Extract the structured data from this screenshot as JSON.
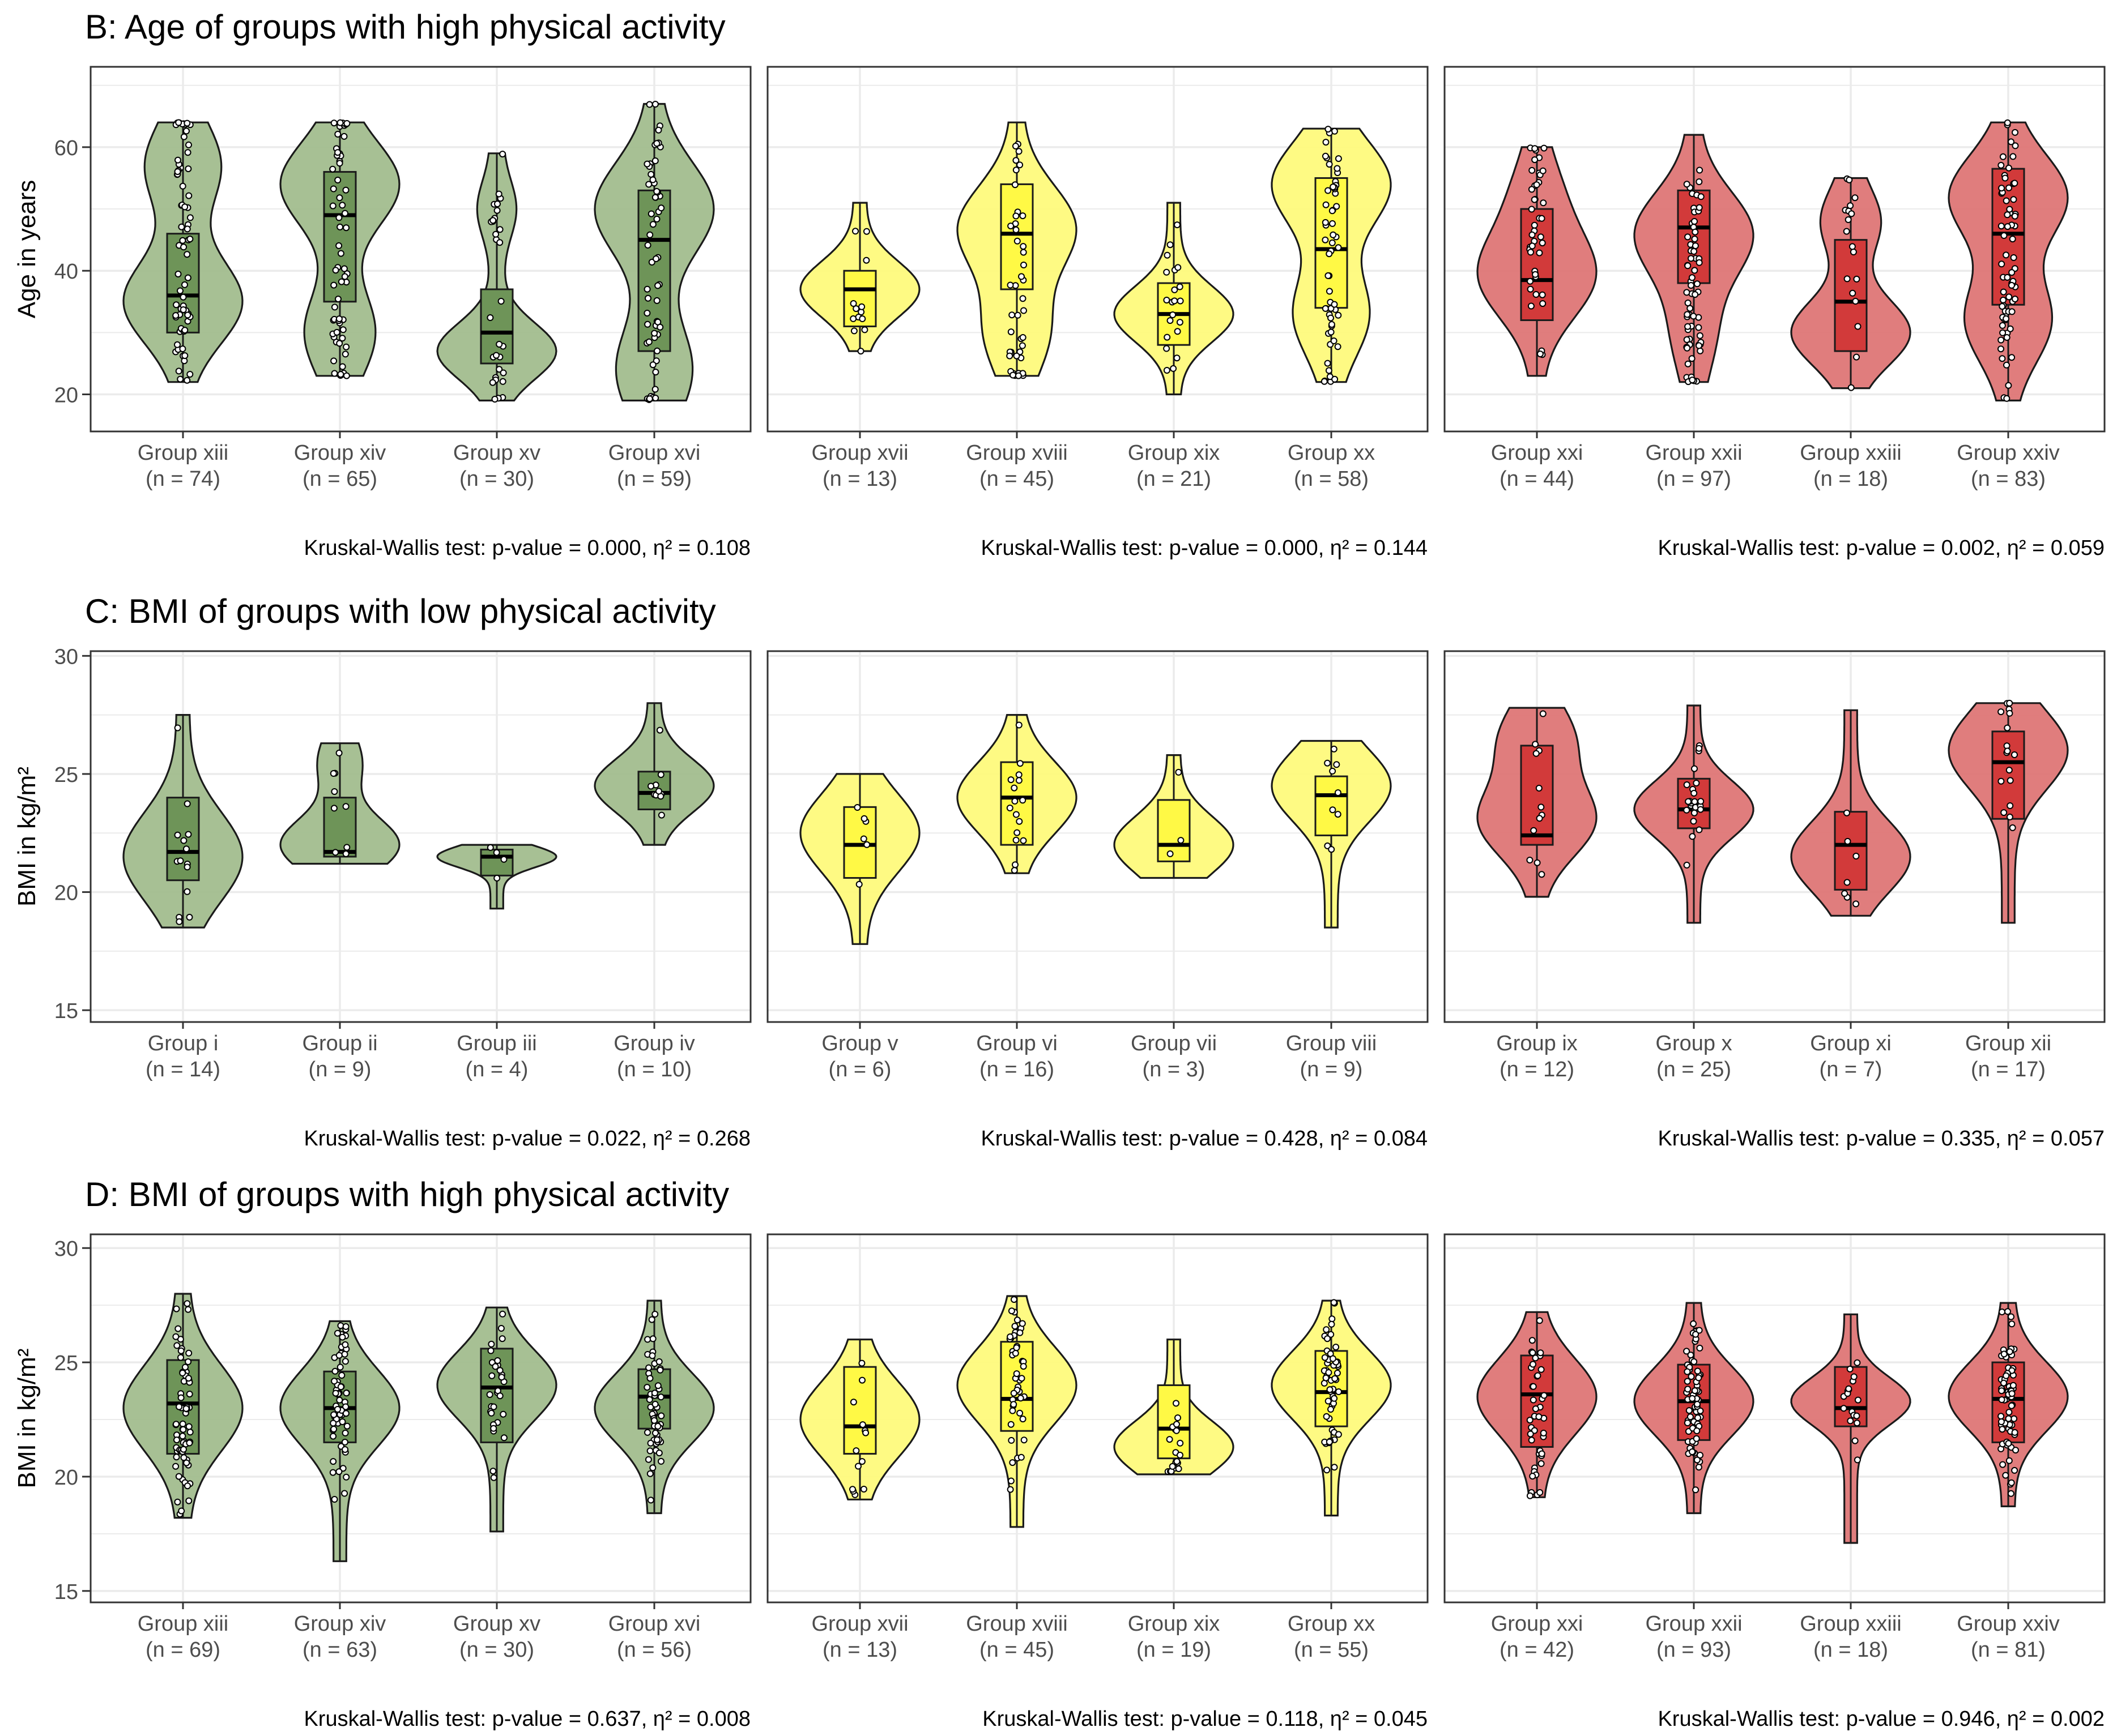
{
  "colors": {
    "green_violin": "#a2bd8e",
    "green_box": "#6e9458",
    "yellow_violin": "#fefa7c",
    "yellow_box": "#fff945",
    "red_violin": "#de7676",
    "red_box": "#d23a3a",
    "panel_border": "#333333",
    "grid": "#ebebeb",
    "outline": "#1a1a1a"
  },
  "chart_data": [
    {
      "type": "violin",
      "title": "B: Age of groups with high physical activity",
      "ylabel": "Age in years",
      "ylim": [
        14,
        73
      ],
      "yticks": [
        "20",
        "40",
        "60"
      ],
      "grid": true,
      "panels": [
        {
          "color": "green",
          "stat": "Kruskal-Wallis test: p-value = 0.000, η² = 0.108",
          "groups": [
            {
              "label": "Group xiii",
              "n": "(n = 74)",
              "min": 22,
              "max": 64,
              "q1": 30,
              "median": 36,
              "q3": 46,
              "modes": [
                [
                  35,
                  1.0
                ],
                [
                  57,
                  0.6
                ]
              ],
              "bw": 9
            },
            {
              "label": "Group xiv",
              "n": "(n = 65)",
              "min": 23,
              "max": 64,
              "q1": 35,
              "median": 49,
              "q3": 56,
              "modes": [
                [
                  54,
                  1.0
                ],
                [
                  30,
                  0.55
                ]
              ],
              "bw": 9
            },
            {
              "label": "Group xv",
              "n": "(n = 30)",
              "min": 19,
              "max": 59,
              "q1": 25,
              "median": 30,
              "q3": 37,
              "modes": [
                [
                  27,
                  1.0
                ],
                [
                  50,
                  0.25
                ]
              ],
              "bw": 6
            },
            {
              "label": "Group xvi",
              "n": "(n = 59)",
              "min": 19,
              "max": 67,
              "q1": 27,
              "median": 45,
              "q3": 53,
              "modes": [
                [
                  50,
                  1.0
                ],
                [
                  24,
                  0.6
                ]
              ],
              "bw": 10
            }
          ]
        },
        {
          "color": "yellow",
          "stat": "Kruskal-Wallis test: p-value = 0.000, η² = 0.144",
          "groups": [
            {
              "label": "Group xvii",
              "n": "(n = 13)",
              "min": 27,
              "max": 51,
              "q1": 31,
              "median": 37,
              "q3": 40,
              "modes": [
                [
                  37,
                  1.0
                ]
              ],
              "bw": 6
            },
            {
              "label": "Group xviii",
              "n": "(n = 45)",
              "min": 23,
              "max": 64,
              "q1": 37,
              "median": 46,
              "q3": 54,
              "modes": [
                [
                  47,
                  1.0
                ],
                [
                  30,
                  0.5
                ]
              ],
              "bw": 9
            },
            {
              "label": "Group xix",
              "n": "(n = 21)",
              "min": 20,
              "max": 51,
              "q1": 28,
              "median": 33,
              "q3": 38,
              "modes": [
                [
                  33,
                  1.0
                ]
              ],
              "bw": 6
            },
            {
              "label": "Group xx",
              "n": "(n = 58)",
              "min": 22,
              "max": 63,
              "q1": 34,
              "median": 43.5,
              "q3": 55,
              "modes": [
                [
                  54,
                  1.0
                ],
                [
                  33,
                  0.6
                ]
              ],
              "bw": 9
            }
          ]
        },
        {
          "color": "red",
          "stat": "Kruskal-Wallis test: p-value = 0.002, η² = 0.059",
          "groups": [
            {
              "label": "Group xxi",
              "n": "(n = 44)",
              "min": 23,
              "max": 60,
              "q1": 32,
              "median": 38.5,
              "q3": 50,
              "modes": [
                [
                  39,
                  1.0
                ],
                [
                  52,
                  0.35
                ]
              ],
              "bw": 9
            },
            {
              "label": "Group xxii",
              "n": "(n = 97)",
              "min": 22,
              "max": 62,
              "q1": 38,
              "median": 47,
              "q3": 53,
              "modes": [
                [
                  46,
                  1.0
                ],
                [
                  30,
                  0.3
                ]
              ],
              "bw": 9
            },
            {
              "label": "Group xxiii",
              "n": "(n = 18)",
              "min": 21,
              "max": 55,
              "q1": 27,
              "median": 35,
              "q3": 45,
              "modes": [
                [
                  30,
                  1.0
                ],
                [
                  48,
                  0.45
                ]
              ],
              "bw": 7
            },
            {
              "label": "Group xxiv",
              "n": "(n = 83)",
              "min": 19,
              "max": 64,
              "q1": 34.5,
              "median": 46,
              "q3": 56.5,
              "modes": [
                [
                  52,
                  1.0
                ],
                [
                  32,
                  0.7
                ]
              ],
              "bw": 9
            }
          ]
        }
      ]
    },
    {
      "type": "violin",
      "title": "C: BMI of groups with low physical activity",
      "ylabel": "BMI in kg/m²",
      "ylim": [
        14.5,
        30.2
      ],
      "yticks": [
        "15",
        "20",
        "25",
        "30"
      ],
      "grid": true,
      "panels": [
        {
          "color": "green",
          "stat": "Kruskal-Wallis test: p-value = 0.022, η² = 0.268",
          "groups": [
            {
              "label": "Group i",
              "n": "(n = 14)",
              "min": 18.5,
              "max": 27.5,
              "q1": 20.5,
              "median": 21.7,
              "q3": 24,
              "modes": [
                [
                  21.5,
                  1.0
                ]
              ],
              "bw": 2.5
            },
            {
              "label": "Group ii",
              "n": "(n = 9)",
              "min": 21.2,
              "max": 26.3,
              "q1": 21.5,
              "median": 21.7,
              "q3": 24,
              "modes": [
                [
                  22,
                  1.0
                ],
                [
                  25.5,
                  0.3
                ]
              ],
              "bw": 1.5
            },
            {
              "label": "Group iii",
              "n": "(n = 4)",
              "min": 19.3,
              "max": 22,
              "q1": 20.7,
              "median": 21.5,
              "q3": 21.8,
              "modes": [
                [
                  21.5,
                  1.0
                ]
              ],
              "bw": 0.6
            },
            {
              "label": "Group iv",
              "n": "(n = 10)",
              "min": 22,
              "max": 28,
              "q1": 23.5,
              "median": 24.2,
              "q3": 25.1,
              "modes": [
                [
                  24.5,
                  1.0
                ]
              ],
              "bw": 1.5
            }
          ]
        },
        {
          "color": "yellow",
          "stat": "Kruskal-Wallis test: p-value = 0.428, η² = 0.084",
          "groups": [
            {
              "label": "Group v",
              "n": "(n = 6)",
              "min": 17.8,
              "max": 25,
              "q1": 20.6,
              "median": 22,
              "q3": 23.6,
              "modes": [
                [
                  22.5,
                  1.0
                ]
              ],
              "bw": 2.2
            },
            {
              "label": "Group vi",
              "n": "(n = 16)",
              "min": 20.8,
              "max": 27.5,
              "q1": 22,
              "median": 24,
              "q3": 25.5,
              "modes": [
                [
                  24,
                  1.0
                ]
              ],
              "bw": 2
            },
            {
              "label": "Group vii",
              "n": "(n = 3)",
              "min": 20.6,
              "max": 25.8,
              "q1": 21.3,
              "median": 22,
              "q3": 23.9,
              "modes": [
                [
                  22,
                  1.0
                ]
              ],
              "bw": 1.6
            },
            {
              "label": "Group viii",
              "n": "(n = 9)",
              "min": 18.5,
              "max": 26.4,
              "q1": 22.4,
              "median": 24.1,
              "q3": 24.9,
              "modes": [
                [
                  24.5,
                  1.0
                ]
              ],
              "bw": 2
            }
          ]
        },
        {
          "color": "red",
          "stat": "Kruskal-Wallis test: p-value = 0.335, η² = 0.057",
          "groups": [
            {
              "label": "Group ix",
              "n": "(n = 12)",
              "min": 19.8,
              "max": 27.8,
              "q1": 22,
              "median": 22.4,
              "q3": 26.2,
              "modes": [
                [
                  23,
                  1.0
                ],
                [
                  26.5,
                  0.6
                ]
              ],
              "bw": 2
            },
            {
              "label": "Group x",
              "n": "(n = 25)",
              "min": 18.7,
              "max": 27.9,
              "q1": 22.7,
              "median": 23.5,
              "q3": 24.8,
              "modes": [
                [
                  23.5,
                  1.0
                ]
              ],
              "bw": 1.6
            },
            {
              "label": "Group xi",
              "n": "(n = 7)",
              "min": 19,
              "max": 27.7,
              "q1": 20.1,
              "median": 22,
              "q3": 23.4,
              "modes": [
                [
                  21.5,
                  1.0
                ]
              ],
              "bw": 2
            },
            {
              "label": "Group xii",
              "n": "(n = 17)",
              "min": 18.7,
              "max": 28,
              "q1": 23.1,
              "median": 25.5,
              "q3": 26.8,
              "modes": [
                [
                  26,
                  1.0
                ]
              ],
              "bw": 2.2
            }
          ]
        }
      ]
    },
    {
      "type": "violin",
      "title": "D: BMI of groups with high physical activity",
      "ylabel": "BMI in kg/m²",
      "ylim": [
        14.5,
        30.6
      ],
      "yticks": [
        "15",
        "20",
        "25",
        "30"
      ],
      "grid": true,
      "panels": [
        {
          "color": "green",
          "stat": "Kruskal-Wallis test: p-value = 0.637, η² = 0.008",
          "groups": [
            {
              "label": "Group xiii",
              "n": "(n = 69)",
              "min": 18.2,
              "max": 28,
              "q1": 21,
              "median": 23.2,
              "q3": 25.1,
              "modes": [
                [
                  23,
                  1.0
                ]
              ],
              "bw": 2.5
            },
            {
              "label": "Group xiv",
              "n": "(n = 63)",
              "min": 16.3,
              "max": 26.8,
              "q1": 21.5,
              "median": 23,
              "q3": 24.6,
              "modes": [
                [
                  23,
                  1.0
                ]
              ],
              "bw": 2.2
            },
            {
              "label": "Group xv",
              "n": "(n = 30)",
              "min": 17.6,
              "max": 27.4,
              "q1": 21.5,
              "median": 23.9,
              "q3": 25.6,
              "modes": [
                [
                  24,
                  1.0
                ]
              ],
              "bw": 2
            },
            {
              "label": "Group xvi",
              "n": "(n = 56)",
              "min": 18.4,
              "max": 27.7,
              "q1": 22.1,
              "median": 23.5,
              "q3": 24.7,
              "modes": [
                [
                  23,
                  1.0
                ]
              ],
              "bw": 2
            }
          ]
        },
        {
          "color": "yellow",
          "stat": "Kruskal-Wallis test: p-value = 0.118, η² = 0.045",
          "groups": [
            {
              "label": "Group xvii",
              "n": "(n = 13)",
              "min": 19,
              "max": 26,
              "q1": 21,
              "median": 22.2,
              "q3": 24.8,
              "modes": [
                [
                  22.5,
                  1.0
                ]
              ],
              "bw": 2.2
            },
            {
              "label": "Group xviii",
              "n": "(n = 45)",
              "min": 17.8,
              "max": 27.9,
              "q1": 22,
              "median": 23.4,
              "q3": 25.9,
              "modes": [
                [
                  24,
                  1.0
                ]
              ],
              "bw": 2.2
            },
            {
              "label": "Group xix",
              "n": "(n = 19)",
              "min": 20.1,
              "max": 26,
              "q1": 20.8,
              "median": 22.1,
              "q3": 24,
              "modes": [
                [
                  21.3,
                  1.0
                ]
              ],
              "bw": 1.5
            },
            {
              "label": "Group xx",
              "n": "(n = 55)",
              "min": 18.3,
              "max": 27.7,
              "q1": 22.2,
              "median": 23.7,
              "q3": 25.5,
              "modes": [
                [
                  24,
                  1.0
                ]
              ],
              "bw": 2
            }
          ]
        },
        {
          "color": "red",
          "stat": "Kruskal-Wallis test: p-value = 0.946, η² = 0.002",
          "groups": [
            {
              "label": "Group xxi",
              "n": "(n = 42)",
              "min": 19.1,
              "max": 27.2,
              "q1": 21.3,
              "median": 23.6,
              "q3": 25.3,
              "modes": [
                [
                  23.5,
                  1.0
                ]
              ],
              "bw": 2.2
            },
            {
              "label": "Group xxii",
              "n": "(n = 93)",
              "min": 18.4,
              "max": 27.6,
              "q1": 21.6,
              "median": 23.3,
              "q3": 24.9,
              "modes": [
                [
                  23.3,
                  1.0
                ]
              ],
              "bw": 2
            },
            {
              "label": "Group xxiii",
              "n": "(n = 18)",
              "min": 17.1,
              "max": 27.1,
              "q1": 22.2,
              "median": 23,
              "q3": 24.8,
              "modes": [
                [
                  23.3,
                  1.0
                ]
              ],
              "bw": 1.4
            },
            {
              "label": "Group xxiv",
              "n": "(n = 81)",
              "min": 18.7,
              "max": 27.6,
              "q1": 21.5,
              "median": 23.4,
              "q3": 25,
              "modes": [
                [
                  23.5,
                  1.0
                ]
              ],
              "bw": 2
            }
          ]
        }
      ]
    }
  ]
}
